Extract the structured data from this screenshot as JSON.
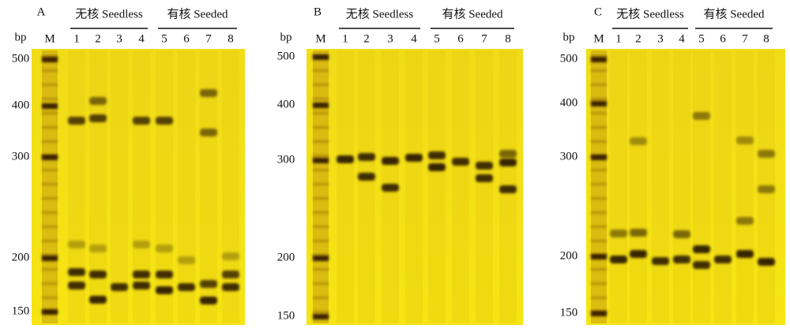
{
  "panels": [
    {
      "label": "A",
      "bp": "bp",
      "ladder": "M",
      "groups": [
        "无核 Seedless",
        "有核 Seeded"
      ],
      "lanes": [
        "1",
        "2",
        "3",
        "4",
        "5",
        "6",
        "7",
        "8"
      ],
      "sizes": [
        "500",
        "400",
        "300",
        "200",
        "150"
      ]
    },
    {
      "label": "B",
      "bp": "bp",
      "ladder": "M",
      "groups": [
        "无核 Seedless",
        "有核 Seeded"
      ],
      "lanes": [
        "1",
        "2",
        "3",
        "4",
        "5",
        "6",
        "7",
        "8"
      ],
      "sizes": [
        "500",
        "400",
        "300",
        "200",
        "150"
      ]
    },
    {
      "label": "C",
      "bp": "bp",
      "ladder": "M",
      "groups": [
        "无核 Seedless",
        "有核 Seeded"
      ],
      "lanes": [
        "1",
        "2",
        "3",
        "4",
        "5",
        "6",
        "7",
        "8"
      ],
      "sizes": [
        "500",
        "400",
        "300",
        "200",
        "150"
      ]
    }
  ]
}
